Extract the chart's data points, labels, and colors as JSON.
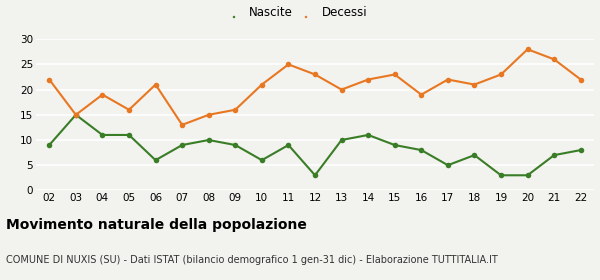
{
  "years": [
    "02",
    "03",
    "04",
    "05",
    "06",
    "07",
    "08",
    "09",
    "10",
    "11",
    "12",
    "13",
    "14",
    "15",
    "16",
    "17",
    "18",
    "19",
    "20",
    "21",
    "22"
  ],
  "nascite": [
    9,
    15,
    11,
    11,
    6,
    9,
    10,
    9,
    6,
    9,
    3,
    10,
    11,
    9,
    8,
    5,
    7,
    3,
    3,
    7,
    8
  ],
  "decessi": [
    22,
    15,
    19,
    16,
    21,
    13,
    15,
    16,
    21,
    25,
    23,
    20,
    22,
    23,
    19,
    22,
    21,
    23,
    28,
    26,
    22
  ],
  "nascite_color": "#3a7d27",
  "decessi_color": "#e87722",
  "bg_color": "#f2f2ee",
  "title": "Movimento naturale della popolazione",
  "subtitle": "COMUNE DI NUXIS (SU) - Dati ISTAT (bilancio demografico 1 gen-31 dic) - Elaborazione TUTTITALIA.IT",
  "legend_nascite": "Nascite",
  "legend_decessi": "Decessi",
  "ylim": [
    0,
    30
  ],
  "yticks": [
    0,
    5,
    10,
    15,
    20,
    25,
    30
  ],
  "title_fontsize": 10,
  "subtitle_fontsize": 7,
  "tick_fontsize": 7.5,
  "legend_fontsize": 8.5
}
